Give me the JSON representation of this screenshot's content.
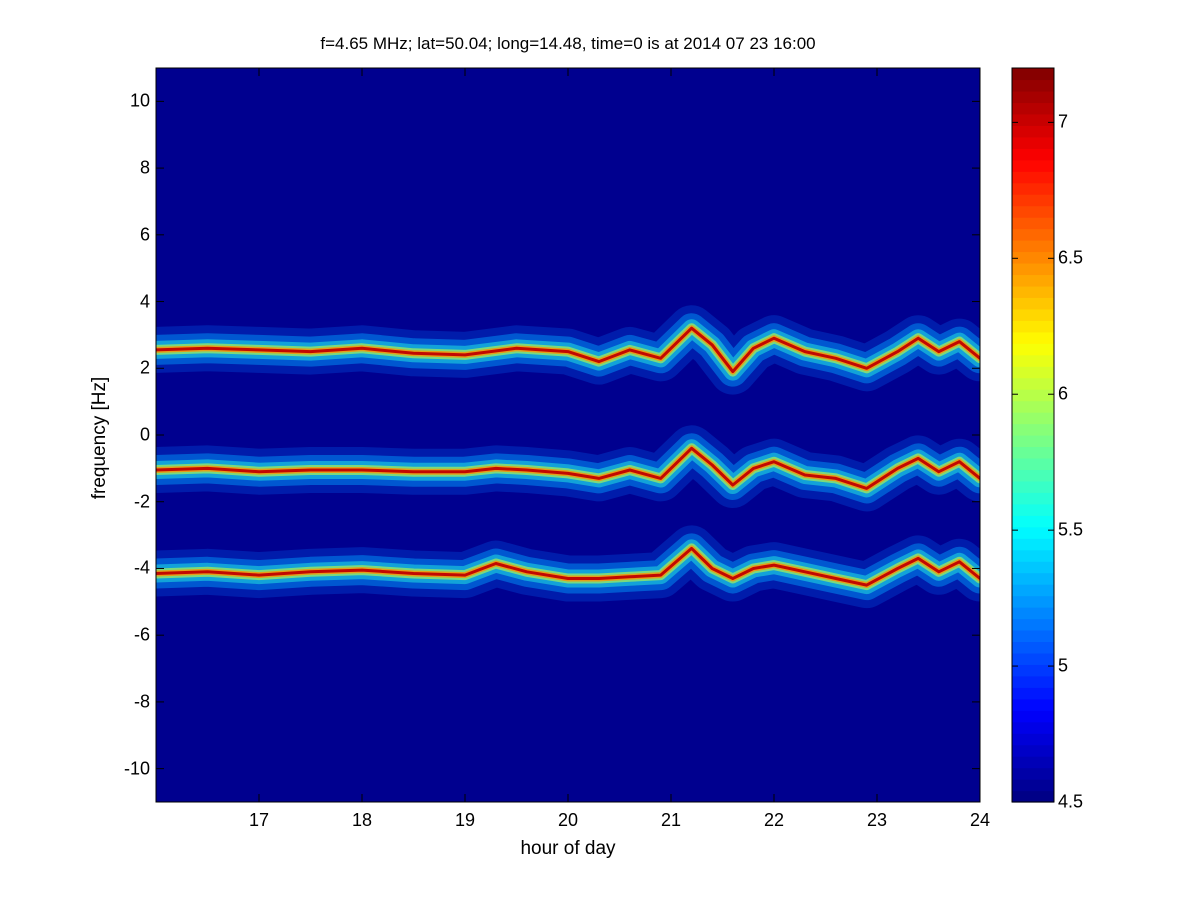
{
  "chart_data": {
    "type": "heatmap",
    "title": "f=4.65 MHz;  lat=50.04; long=14.48, time=0 is at 2014 07 23 16:00",
    "xlabel": "hour of day",
    "ylabel": "frequency [Hz]",
    "xlim": [
      16,
      24
    ],
    "ylim": [
      -11,
      11
    ],
    "x_ticks": [
      "17",
      "18",
      "19",
      "20",
      "21",
      "22",
      "23",
      "24"
    ],
    "y_ticks": [
      "10",
      "8",
      "6",
      "4",
      "2",
      "0",
      "-2",
      "-4",
      "-6",
      "-8",
      "-10"
    ],
    "colorbar": {
      "range": [
        4.5,
        7.2
      ],
      "ticks": [
        "4.5",
        "5",
        "5.5",
        "6",
        "6.5",
        "7"
      ],
      "colormap": "jet"
    },
    "background_color": "#00008F",
    "series": [
      {
        "center_frequency": 2.55,
        "points": [
          [
            16,
            2.55
          ],
          [
            16.5,
            2.6
          ],
          [
            17,
            2.55
          ],
          [
            17.5,
            2.5
          ],
          [
            18,
            2.6
          ],
          [
            18.5,
            2.45
          ],
          [
            19,
            2.4
          ],
          [
            19.5,
            2.6
          ],
          [
            20,
            2.5
          ],
          [
            20.3,
            2.2
          ],
          [
            20.6,
            2.55
          ],
          [
            20.9,
            2.3
          ],
          [
            21.2,
            3.2
          ],
          [
            21.4,
            2.7
          ],
          [
            21.6,
            1.9
          ],
          [
            21.8,
            2.6
          ],
          [
            22,
            2.9
          ],
          [
            22.3,
            2.5
          ],
          [
            22.6,
            2.3
          ],
          [
            22.9,
            2.0
          ],
          [
            23.2,
            2.5
          ],
          [
            23.4,
            2.9
          ],
          [
            23.6,
            2.5
          ],
          [
            23.8,
            2.8
          ],
          [
            24,
            2.3
          ]
        ]
      },
      {
        "center_frequency": -1.1,
        "points": [
          [
            16,
            -1.05
          ],
          [
            16.5,
            -1.0
          ],
          [
            17,
            -1.1
          ],
          [
            17.5,
            -1.05
          ],
          [
            18,
            -1.05
          ],
          [
            18.5,
            -1.1
          ],
          [
            19,
            -1.1
          ],
          [
            19.3,
            -1.0
          ],
          [
            19.6,
            -1.05
          ],
          [
            20,
            -1.15
          ],
          [
            20.3,
            -1.3
          ],
          [
            20.6,
            -1.05
          ],
          [
            20.9,
            -1.3
          ],
          [
            21.2,
            -0.4
          ],
          [
            21.4,
            -0.9
          ],
          [
            21.6,
            -1.5
          ],
          [
            21.8,
            -1.0
          ],
          [
            22,
            -0.8
          ],
          [
            22.3,
            -1.2
          ],
          [
            22.6,
            -1.3
          ],
          [
            22.9,
            -1.6
          ],
          [
            23.2,
            -1.0
          ],
          [
            23.4,
            -0.7
          ],
          [
            23.6,
            -1.1
          ],
          [
            23.8,
            -0.8
          ],
          [
            24,
            -1.3
          ]
        ]
      },
      {
        "center_frequency": -4.15,
        "points": [
          [
            16,
            -4.15
          ],
          [
            16.5,
            -4.1
          ],
          [
            17,
            -4.2
          ],
          [
            17.5,
            -4.1
          ],
          [
            18,
            -4.05
          ],
          [
            18.5,
            -4.15
          ],
          [
            19,
            -4.2
          ],
          [
            19.3,
            -3.85
          ],
          [
            19.6,
            -4.1
          ],
          [
            20,
            -4.3
          ],
          [
            20.3,
            -4.3
          ],
          [
            20.6,
            -4.25
          ],
          [
            20.9,
            -4.2
          ],
          [
            21.2,
            -3.4
          ],
          [
            21.4,
            -4.0
          ],
          [
            21.6,
            -4.3
          ],
          [
            21.8,
            -4.0
          ],
          [
            22,
            -3.9
          ],
          [
            22.3,
            -4.1
          ],
          [
            22.6,
            -4.3
          ],
          [
            22.9,
            -4.5
          ],
          [
            23.2,
            -4.0
          ],
          [
            23.4,
            -3.7
          ],
          [
            23.6,
            -4.1
          ],
          [
            23.8,
            -3.8
          ],
          [
            24,
            -4.3
          ]
        ]
      }
    ]
  }
}
